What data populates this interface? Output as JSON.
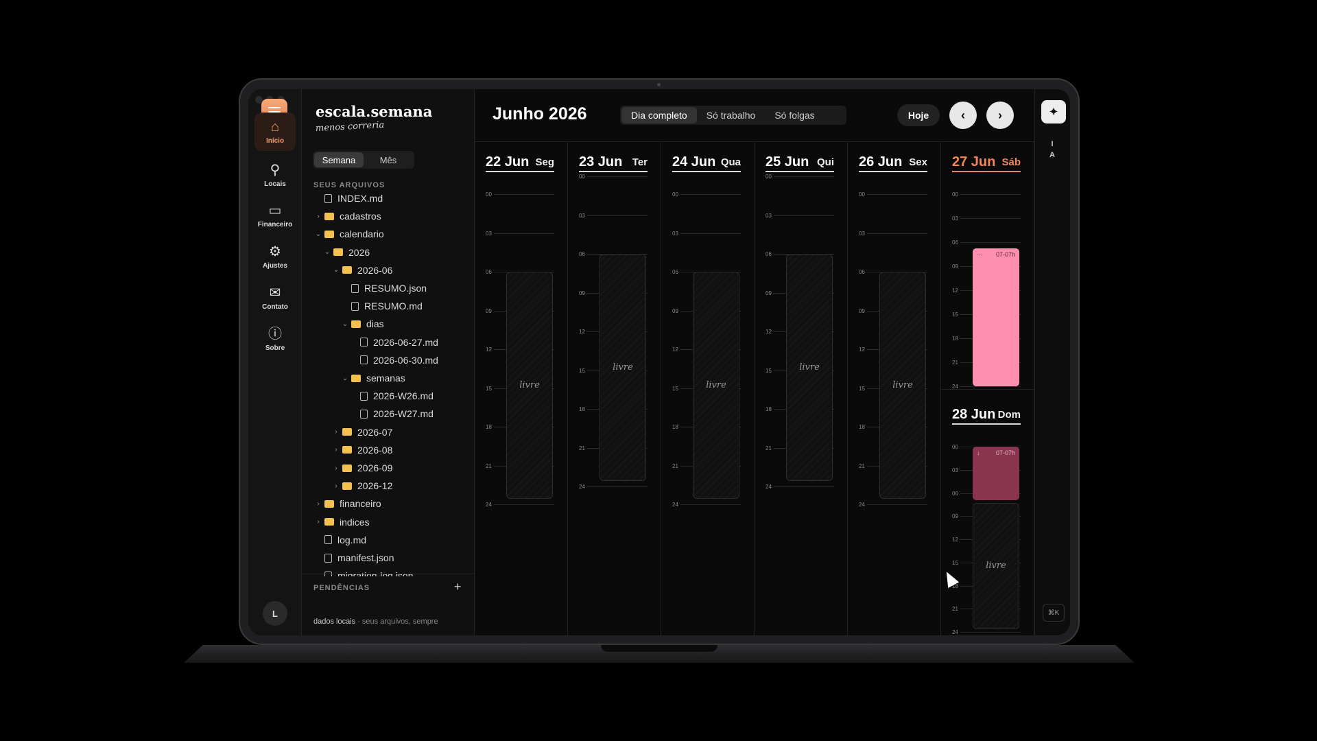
{
  "app": {
    "brand": "escala.semana",
    "tagline": "menos correria",
    "avatar_initial": "L"
  },
  "nav": [
    {
      "label": "Início",
      "icon": "home-icon"
    },
    {
      "label": "Locais",
      "icon": "pin-icon"
    },
    {
      "label": "Financeiro",
      "icon": "cash-icon"
    },
    {
      "label": "Ajustes",
      "icon": "gear-icon"
    },
    {
      "label": "Contato",
      "icon": "mail-icon"
    },
    {
      "label": "Sobre",
      "icon": "info-icon"
    }
  ],
  "panel": {
    "view_toggle": [
      "Semana",
      "Mês"
    ],
    "files_label": "SEUS ARQUIVOS",
    "tree": [
      {
        "name": "INDEX.md",
        "type": "file",
        "depth": 0
      },
      {
        "name": "cadastros",
        "type": "folder",
        "depth": 0,
        "open": false
      },
      {
        "name": "calendario",
        "type": "folder",
        "depth": 0,
        "open": true
      },
      {
        "name": "2026",
        "type": "folder",
        "depth": 1,
        "open": true
      },
      {
        "name": "2026-06",
        "type": "folder",
        "depth": 2,
        "open": true
      },
      {
        "name": "RESUMO.json",
        "type": "file",
        "depth": 3
      },
      {
        "name": "RESUMO.md",
        "type": "file",
        "depth": 3
      },
      {
        "name": "dias",
        "type": "folder",
        "depth": 3,
        "open": true
      },
      {
        "name": "2026-06-27.md",
        "type": "file",
        "depth": 4
      },
      {
        "name": "2026-06-30.md",
        "type": "file",
        "depth": 4
      },
      {
        "name": "semanas",
        "type": "folder",
        "depth": 3,
        "open": true
      },
      {
        "name": "2026-W26.md",
        "type": "file",
        "depth": 4
      },
      {
        "name": "2026-W27.md",
        "type": "file",
        "depth": 4
      },
      {
        "name": "2026-07",
        "type": "folder",
        "depth": 2,
        "open": false
      },
      {
        "name": "2026-08",
        "type": "folder",
        "depth": 2,
        "open": false
      },
      {
        "name": "2026-09",
        "type": "folder",
        "depth": 2,
        "open": false
      },
      {
        "name": "2026-12",
        "type": "folder",
        "depth": 2,
        "open": false
      },
      {
        "name": "financeiro",
        "type": "folder",
        "depth": 0,
        "open": false
      },
      {
        "name": "indices",
        "type": "folder",
        "depth": 0,
        "open": false
      },
      {
        "name": "log.md",
        "type": "file",
        "depth": 0
      },
      {
        "name": "manifest.json",
        "type": "file",
        "depth": 0
      },
      {
        "name": "migration-log.json",
        "type": "file",
        "depth": 0
      }
    ],
    "pending_label": "PENDÊNCIAS",
    "footnote_strong": "dados locais",
    "footnote_rest": " · seus arquivos, sempre"
  },
  "calendar": {
    "month_title": "Junho 2026",
    "filters": [
      "Dia completo",
      "Só trabalho",
      "Só folgas"
    ],
    "today_button": "Hoje",
    "hour_labels": [
      "00",
      "03",
      "06",
      "09",
      "12",
      "15",
      "18",
      "21",
      "24"
    ],
    "free_label": "livre",
    "days": [
      {
        "date": "22 Jun",
        "weekday": "Seg",
        "today": false,
        "free": true
      },
      {
        "date": "23 Jun",
        "weekday": "Ter",
        "today": false,
        "free": true
      },
      {
        "date": "24 Jun",
        "weekday": "Qua",
        "today": false,
        "free": true
      },
      {
        "date": "25 Jun",
        "weekday": "Qui",
        "today": false,
        "free": true
      },
      {
        "date": "26 Jun",
        "weekday": "Sex",
        "today": false,
        "free": true
      },
      {
        "date": "27 Jun",
        "weekday": "Sáb",
        "today": true,
        "free": false,
        "shift": {
          "label": "07-07h",
          "mark": "···"
        }
      },
      {
        "date": "28 Jun",
        "weekday": "Dom",
        "today": false,
        "free": true,
        "shift": {
          "label": "07-07h",
          "mark": "↓"
        }
      }
    ]
  },
  "right_rail": {
    "ia_label": "IA",
    "shortcut": "⌘K"
  },
  "colors": {
    "accent": "#f1875a",
    "shift": "#ff8fb1",
    "shift_dim": "#8a3550"
  }
}
